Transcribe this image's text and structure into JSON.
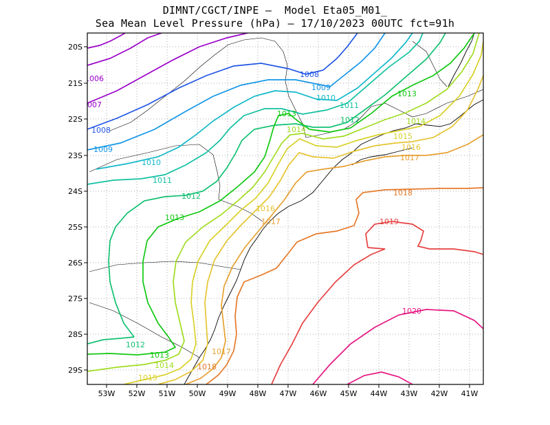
{
  "title": {
    "line1": "DIMNT/CGCT/INPE –  Model Eta05_M01_",
    "line2": "Sea Mean Level Pressure (hPa) – 17/10/2023 00UTC fct=91h"
  },
  "axes": {
    "lon_labels": [
      "53W",
      "52W",
      "51W",
      "50W",
      "49W",
      "48W",
      "47W",
      "46W",
      "45W",
      "44W",
      "43W",
      "42W",
      "41W"
    ],
    "lat_labels": [
      "20S",
      "21S",
      "22S",
      "23S",
      "24S",
      "25S",
      "26S",
      "27S",
      "28S",
      "29S"
    ]
  },
  "chart_data": {
    "type": "contour-map",
    "variable": "Sea Mean Level Pressure",
    "units": "hPa",
    "lon_range": [
      -53.6,
      -40.5
    ],
    "lat_range": [
      -29.4,
      -19.7
    ],
    "contour_labels": [
      {
        "text": "1006",
        "color": "#9a00c8"
      },
      {
        "text": "007",
        "color": "#9a00c8"
      },
      {
        "text": "1008",
        "color": "#1f55e6"
      },
      {
        "text": "1008",
        "color": "#1f55e6"
      },
      {
        "text": "1009",
        "color": "#1296e6"
      },
      {
        "text": "1009",
        "color": "#1296e6"
      },
      {
        "text": "1010",
        "color": "#10b8c8"
      },
      {
        "text": "1010",
        "color": "#10b8c8"
      },
      {
        "text": "1011",
        "color": "#10c0a0"
      },
      {
        "text": "1011",
        "color": "#10c0a0"
      },
      {
        "text": "1012",
        "color": "#10c070"
      },
      {
        "text": "1012",
        "color": "#10c070"
      },
      {
        "text": "1012",
        "color": "#10c070"
      },
      {
        "text": "1013",
        "color": "#10c810"
      },
      {
        "text": "1013",
        "color": "#10c810"
      },
      {
        "text": "1013",
        "color": "#10c810"
      },
      {
        "text": "1013",
        "color": "#10c810"
      },
      {
        "text": "1014",
        "color": "#a0dc20"
      },
      {
        "text": "1014",
        "color": "#a0dc20"
      },
      {
        "text": "1014",
        "color": "#a0dc20"
      },
      {
        "text": "1015",
        "color": "#d8d028"
      },
      {
        "text": "1015",
        "color": "#d8d028"
      },
      {
        "text": "1016",
        "color": "#e6c430"
      },
      {
        "text": "1016",
        "color": "#e6c430"
      },
      {
        "text": "1017",
        "color": "#e6a030"
      },
      {
        "text": "1017",
        "color": "#e6a030"
      },
      {
        "text": "1017",
        "color": "#e6a030"
      },
      {
        "text": "1018",
        "color": "#e67828"
      },
      {
        "text": "1018",
        "color": "#e67828"
      },
      {
        "text": "1019",
        "color": "#e64040"
      },
      {
        "text": "1020",
        "color": "#e61480"
      }
    ]
  }
}
